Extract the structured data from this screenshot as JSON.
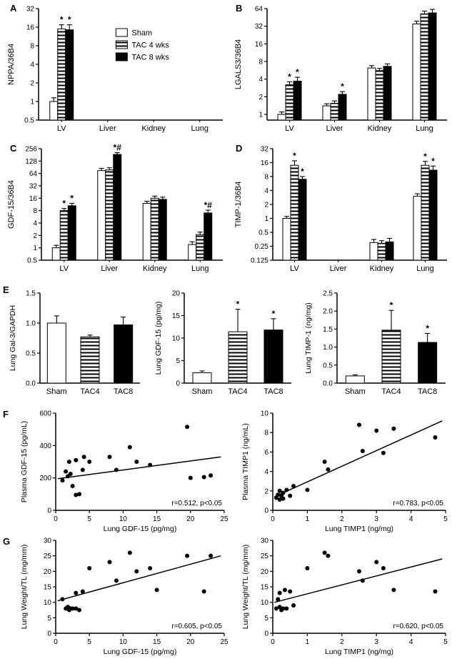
{
  "panels": {
    "a": "A",
    "b": "B",
    "c": "C",
    "d": "D",
    "e": "E",
    "f": "F",
    "g": "G"
  },
  "legend": {
    "labels": [
      "Sham",
      "TAC 4 wks",
      "TAC 8 wks"
    ]
  },
  "colors": {
    "bar_white": "#ffffff",
    "bar_black": "#000000",
    "stroke": "#000000"
  },
  "chart_data": [
    {
      "id": "A",
      "type": "logbar",
      "title": "",
      "ylabel": "NPPA/36B4",
      "ymin": 0.5,
      "ymax": 32,
      "yticks": [
        0.5,
        1,
        2,
        4,
        8,
        16,
        32
      ],
      "ytick_labels": [
        "0.5",
        "1",
        "2",
        "4",
        "8",
        "16",
        "32"
      ],
      "categories": [
        "LV",
        "Liver",
        "Kidney",
        "Lung"
      ],
      "series": [
        {
          "name": "Sham",
          "fill": "white",
          "values": [
            1,
            null,
            null,
            null
          ],
          "errors": [
            0.15,
            null,
            null,
            null
          ],
          "ann": [
            "",
            "",
            "",
            ""
          ]
        },
        {
          "name": "TAC 4 wks",
          "fill": "stripes",
          "values": [
            15,
            null,
            null,
            null
          ],
          "errors": [
            2.5,
            null,
            null,
            null
          ],
          "ann": [
            "*",
            "",
            "",
            ""
          ]
        },
        {
          "name": "TAC 8 wks",
          "fill": "black",
          "values": [
            14.5,
            null,
            null,
            null
          ],
          "errors": [
            3,
            null,
            null,
            null
          ],
          "ann": [
            "*",
            "",
            "",
            ""
          ]
        }
      ],
      "legend": {
        "show": true,
        "labels": [
          "Sham",
          "TAC 4 wks",
          "TAC 8 wks"
        ]
      }
    },
    {
      "id": "B",
      "type": "logbar",
      "title": "",
      "ylabel": "LGALS3/36B4",
      "ymin": 0.8,
      "ymax": 64,
      "yticks": [
        1,
        2,
        4,
        8,
        16,
        32,
        64
      ],
      "ytick_labels": [
        "1",
        "2",
        "4",
        "8",
        "16",
        "32",
        "64"
      ],
      "categories": [
        "LV",
        "Liver",
        "Kidney",
        "Lung"
      ],
      "series": [
        {
          "name": "Sham",
          "fill": "white",
          "values": [
            1,
            1.4,
            6.2,
            35
          ],
          "errors": [
            0.1,
            0.12,
            0.6,
            4
          ],
          "ann": [
            "",
            "",
            "",
            ""
          ]
        },
        {
          "name": "TAC 4 wks",
          "fill": "stripes",
          "values": [
            3.2,
            1.55,
            5.6,
            52
          ],
          "errors": [
            0.4,
            0.15,
            0.5,
            6
          ],
          "ann": [
            "*",
            "",
            "",
            ""
          ]
        },
        {
          "name": "TAC 8 wks",
          "fill": "black",
          "values": [
            3.7,
            2.2,
            6.6,
            54
          ],
          "errors": [
            0.6,
            0.25,
            0.7,
            8
          ],
          "ann": [
            "*",
            "*",
            "",
            ""
          ]
        }
      ]
    },
    {
      "id": "C",
      "type": "logbar",
      "title": "",
      "ylabel": "GDF-15/36B4",
      "ymin": 0.5,
      "ymax": 256,
      "yticks": [
        0.5,
        1,
        2,
        4,
        8,
        16,
        32,
        64,
        128,
        256
      ],
      "ytick_labels": [
        "0.5",
        "1",
        "2",
        "4",
        "8",
        "16",
        "32",
        "64",
        "128",
        "256"
      ],
      "categories": [
        "LV",
        "Liver",
        "Kidney",
        "Lung"
      ],
      "series": [
        {
          "name": "Sham",
          "fill": "white",
          "values": [
            1,
            75,
            12,
            1.2
          ],
          "errors": [
            0.15,
            10,
            1.5,
            0.2
          ],
          "ann": [
            "",
            "",
            "",
            ""
          ]
        },
        {
          "name": "TAC 4 wks",
          "fill": "stripes",
          "values": [
            8,
            78,
            16,
            2.1
          ],
          "errors": [
            1,
            10,
            2,
            0.3
          ],
          "ann": [
            "*",
            "",
            "",
            ""
          ]
        },
        {
          "name": "TAC 8 wks",
          "fill": "black",
          "values": [
            10.5,
            185,
            15,
            7
          ],
          "errors": [
            1.5,
            20,
            2,
            1.2
          ],
          "ann": [
            "*",
            "*#",
            "",
            "*#"
          ]
        }
      ]
    },
    {
      "id": "D",
      "type": "logbar",
      "title": "",
      "ylabel": "TIMP-1/36B4",
      "ymin": 0.125,
      "ymax": 32,
      "yticks": [
        0.125,
        0.25,
        0.5,
        1,
        2,
        4,
        8,
        16,
        32
      ],
      "ytick_labels": [
        "0.125",
        "0.25",
        "0.5",
        "1",
        "2",
        "4",
        "8",
        "16",
        "32"
      ],
      "categories": [
        "LV",
        "Liver",
        "Kidney",
        "Lung"
      ],
      "series": [
        {
          "name": "Sham",
          "fill": "white",
          "values": [
            1,
            null,
            0.3,
            3
          ],
          "errors": [
            0.1,
            null,
            0.05,
            0.4
          ],
          "ann": [
            "",
            "",
            "",
            ""
          ]
        },
        {
          "name": "TAC 4 wks",
          "fill": "stripes",
          "values": [
            14,
            null,
            0.29,
            14
          ],
          "errors": [
            3.5,
            null,
            0.04,
            3
          ],
          "ann": [
            "*",
            "",
            "",
            "*"
          ]
        },
        {
          "name": "TAC 8 wks",
          "fill": "black",
          "values": [
            7,
            null,
            0.31,
            11
          ],
          "errors": [
            1,
            null,
            0.06,
            2.5
          ],
          "ann": [
            "*",
            "",
            "",
            "*"
          ]
        }
      ]
    },
    {
      "id": "E1",
      "type": "bar",
      "title": "",
      "ylabel": "Lung Gal-3/GAPDH",
      "ymin": 0,
      "ymax": 1.5,
      "yticks": [
        0,
        0.5,
        1.0,
        1.5
      ],
      "ytick_labels": [
        "0.0",
        "0.5",
        "1.0",
        "1.5"
      ],
      "categories": [
        "Sham",
        "TAC4",
        "TAC8"
      ],
      "fills": [
        "white",
        "stripes",
        "black"
      ],
      "values": [
        1.0,
        0.77,
        0.97
      ],
      "errors": [
        0.12,
        0.03,
        0.13
      ],
      "ann": [
        "",
        "",
        ""
      ]
    },
    {
      "id": "E2",
      "type": "bar",
      "title": "",
      "ylabel": "Lung GDF-15 (pg/mg)",
      "ymin": 0,
      "ymax": 20,
      "yticks": [
        0,
        5,
        10,
        15,
        20
      ],
      "ytick_labels": [
        "0",
        "5",
        "10",
        "15",
        "20"
      ],
      "categories": [
        "Sham",
        "TAC4",
        "TAC8"
      ],
      "fills": [
        "white",
        "stripes",
        "black"
      ],
      "values": [
        2.3,
        11.4,
        11.8
      ],
      "errors": [
        0.4,
        5.0,
        2.5
      ],
      "ann": [
        "",
        "*",
        "*"
      ]
    },
    {
      "id": "E3",
      "type": "bar",
      "title": "",
      "ylabel": "Lung TIMP-1 (ng/mg)",
      "ymin": 0,
      "ymax": 2.5,
      "yticks": [
        0,
        0.5,
        1.0,
        1.5,
        2.0,
        2.5
      ],
      "ytick_labels": [
        "0.0",
        "0.5",
        "1.0",
        "1.5",
        "2.0",
        "2.5"
      ],
      "categories": [
        "Sham",
        "TAC4",
        "TAC8"
      ],
      "fills": [
        "white",
        "stripes",
        "black"
      ],
      "values": [
        0.2,
        1.47,
        1.13
      ],
      "errors": [
        0.03,
        0.55,
        0.25
      ],
      "ann": [
        "",
        "*",
        "*"
      ]
    },
    {
      "id": "F1",
      "type": "scatter",
      "xlabel": "Lung GDF-15 (pg/mg)",
      "ylabel": "Plasma GDF-15 (pg/mL)",
      "xlim": [
        0,
        25
      ],
      "ylim": [
        0,
        600
      ],
      "xticks": [
        0,
        5,
        10,
        15,
        20,
        25
      ],
      "yticks": [
        0,
        200,
        400,
        600
      ],
      "points": [
        [
          1,
          185
        ],
        [
          1.5,
          240
        ],
        [
          1.8,
          210
        ],
        [
          2,
          300
        ],
        [
          2.2,
          225
        ],
        [
          2.5,
          150
        ],
        [
          3,
          95
        ],
        [
          3,
          310
        ],
        [
          3.5,
          100
        ],
        [
          4,
          250
        ],
        [
          4.2,
          330
        ],
        [
          5,
          300
        ],
        [
          8,
          330
        ],
        [
          9,
          250
        ],
        [
          11,
          390
        ],
        [
          12,
          300
        ],
        [
          14,
          280
        ],
        [
          19.5,
          515
        ],
        [
          20,
          200
        ],
        [
          22,
          205
        ],
        [
          23,
          215
        ]
      ],
      "line": [
        [
          0.3,
          195
        ],
        [
          24.5,
          330
        ]
      ],
      "annotation": "r=0.512, p<0.05"
    },
    {
      "id": "F2",
      "type": "scatter",
      "xlabel": "Lung TIMP1 (ng/mg)",
      "ylabel": "Plasma TIMP1 (ng/mL)",
      "xlim": [
        0,
        5
      ],
      "ylim": [
        0,
        10
      ],
      "xticks": [
        0,
        1,
        2,
        3,
        4,
        5
      ],
      "yticks": [
        0,
        2,
        4,
        6,
        8,
        10
      ],
      "points": [
        [
          0.1,
          1.3
        ],
        [
          0.15,
          1.6
        ],
        [
          0.2,
          1.1
        ],
        [
          0.2,
          2.0
        ],
        [
          0.25,
          1.5
        ],
        [
          0.3,
          1.8
        ],
        [
          0.3,
          1.2
        ],
        [
          0.4,
          2.1
        ],
        [
          0.5,
          1.5
        ],
        [
          0.6,
          2.5
        ],
        [
          1.0,
          2.1
        ],
        [
          1.5,
          5.0
        ],
        [
          1.6,
          4.2
        ],
        [
          2.5,
          8.8
        ],
        [
          2.6,
          6.1
        ],
        [
          3.0,
          8.2
        ],
        [
          3.2,
          5.9
        ],
        [
          3.5,
          8.4
        ],
        [
          4.7,
          7.5
        ]
      ],
      "line": [
        [
          0.05,
          1.4
        ],
        [
          4.9,
          9.2
        ]
      ],
      "annotation": "r=0.783, p<0.05"
    },
    {
      "id": "G1",
      "type": "scatter",
      "xlabel": "Lung GDF-15 (pg/mg)",
      "ylabel": "Lung Weight/TL (mg/mm)",
      "xlim": [
        0,
        25
      ],
      "ylim": [
        0,
        30
      ],
      "xticks": [
        0,
        5,
        10,
        15,
        20,
        25
      ],
      "yticks": [
        0,
        5,
        10,
        15,
        20,
        25,
        30
      ],
      "points": [
        [
          1,
          11
        ],
        [
          1.5,
          8
        ],
        [
          1.8,
          8.5
        ],
        [
          2,
          7.5
        ],
        [
          2.2,
          8
        ],
        [
          2.5,
          8
        ],
        [
          3,
          13
        ],
        [
          3,
          8
        ],
        [
          3.5,
          7.5
        ],
        [
          4,
          13.5
        ],
        [
          5,
          21
        ],
        [
          8,
          23
        ],
        [
          9,
          17
        ],
        [
          11,
          26
        ],
        [
          12,
          20
        ],
        [
          14,
          21
        ],
        [
          15,
          14
        ],
        [
          19.5,
          25
        ],
        [
          22,
          13.5
        ],
        [
          23,
          25
        ]
      ],
      "line": [
        [
          0.3,
          10.5
        ],
        [
          24.5,
          25
        ]
      ],
      "annotation": "r=0.605, p<0.05"
    },
    {
      "id": "G2",
      "type": "scatter",
      "xlabel": "Lung TIMP1 (ng/mg)",
      "ylabel": "Lung Weight/TL (mg/mm)",
      "xlim": [
        0,
        5
      ],
      "ylim": [
        0,
        30
      ],
      "xticks": [
        0,
        1,
        2,
        3,
        4,
        5
      ],
      "yticks": [
        0,
        5,
        10,
        15,
        20,
        25,
        30
      ],
      "points": [
        [
          0.1,
          8
        ],
        [
          0.15,
          11
        ],
        [
          0.2,
          8.5
        ],
        [
          0.2,
          13
        ],
        [
          0.25,
          7.5
        ],
        [
          0.3,
          8
        ],
        [
          0.35,
          14
        ],
        [
          0.4,
          8
        ],
        [
          0.5,
          13.5
        ],
        [
          0.6,
          9
        ],
        [
          1.0,
          21
        ],
        [
          1.5,
          26
        ],
        [
          1.6,
          25
        ],
        [
          2.5,
          20
        ],
        [
          2.6,
          17
        ],
        [
          3.0,
          23
        ],
        [
          3.2,
          21
        ],
        [
          3.5,
          14
        ],
        [
          4.7,
          13.5
        ]
      ],
      "line": [
        [
          0.05,
          10
        ],
        [
          4.9,
          24
        ]
      ],
      "annotation": "r=0.620, p<0.05"
    }
  ]
}
